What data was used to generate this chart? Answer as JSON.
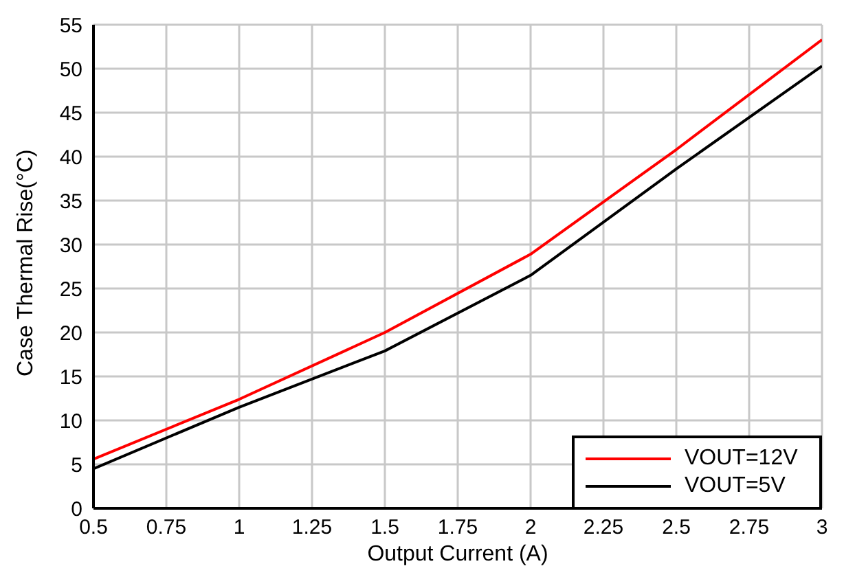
{
  "chart_data": {
    "type": "line",
    "xlabel": "Output Current  (A)",
    "ylabel": "Case Thermal Rise(°C)",
    "x": [
      0.5,
      1,
      1.5,
      2,
      2.5,
      3
    ],
    "series": [
      {
        "name": "VOUT=12V",
        "color": "#ff0000",
        "values": [
          5.6,
          12.4,
          20,
          28.9,
          40.8,
          53.3
        ]
      },
      {
        "name": "VOUT=5V",
        "color": "#000000",
        "values": [
          4.5,
          11.5,
          17.9,
          26.5,
          38.6,
          50.3
        ]
      }
    ],
    "xlim": [
      0.5,
      3
    ],
    "xticks": [
      0.5,
      0.75,
      1,
      1.25,
      1.5,
      1.75,
      2,
      2.25,
      2.5,
      2.75,
      3
    ],
    "ylim": [
      0,
      55
    ],
    "yticks": [
      0,
      5,
      10,
      15,
      20,
      25,
      30,
      35,
      40,
      45,
      50,
      55
    ],
    "grid": true,
    "legend": "bottom right",
    "marker": "none",
    "line_style": "solid"
  }
}
